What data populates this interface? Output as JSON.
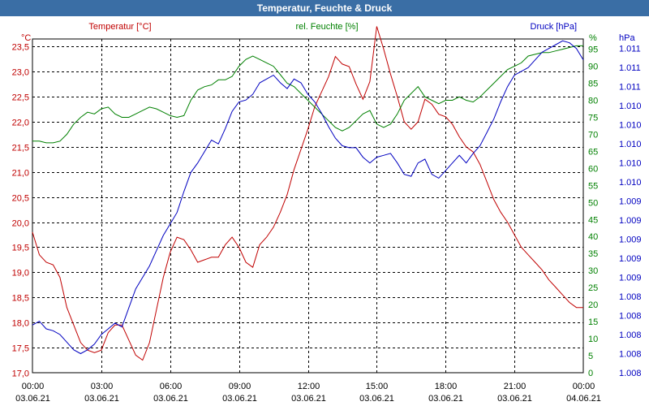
{
  "title": "Temperatur, Feuchte & Druck",
  "chart_data": {
    "type": "line",
    "title": "Temperatur, Feuchte & Druck",
    "x_ticks": [
      {
        "time": "00:00",
        "date": "03.06.21"
      },
      {
        "time": "03:00",
        "date": "03.06.21"
      },
      {
        "time": "06:00",
        "date": "03.06.21"
      },
      {
        "time": "09:00",
        "date": "03.06.21"
      },
      {
        "time": "12:00",
        "date": "03.06.21"
      },
      {
        "time": "15:00",
        "date": "03.06.21"
      },
      {
        "time": "18:00",
        "date": "03.06.21"
      },
      {
        "time": "21:00",
        "date": "03.06.21"
      },
      {
        "time": "00:00",
        "date": "04.06.21"
      }
    ],
    "xlim": [
      0,
      24
    ],
    "axes": {
      "temperature": {
        "label": "Temperatur [°C]",
        "unit": "°C",
        "color": "#c00000",
        "ylim": [
          17.0,
          23.65
        ],
        "ticks": [
          "17,0",
          "17,5",
          "18,0",
          "18,5",
          "19,0",
          "19,5",
          "20,0",
          "20,5",
          "21,0",
          "21,5",
          "22,0",
          "22,5",
          "23,0",
          "23,5"
        ]
      },
      "humidity": {
        "label": "rel. Feuchte [%]",
        "unit": "%",
        "color": "#008000",
        "ylim": [
          0,
          98
        ],
        "ticks": [
          "0",
          "5",
          "10",
          "15",
          "20",
          "25",
          "30",
          "35",
          "40",
          "45",
          "50",
          "55",
          "60",
          "65",
          "70",
          "75",
          "80",
          "85",
          "90",
          "95"
        ]
      },
      "pressure": {
        "label": "Druck [hPa]",
        "unit": "hPa",
        "color": "#0000c0",
        "ylim": [
          0,
          17.5
        ],
        "ticks": [
          "1.008",
          "1.008",
          "1.008",
          "1.008",
          "1.008",
          "1.009",
          "1.009",
          "1.009",
          "1.009",
          "1.009",
          "1.010",
          "1.010",
          "1.010",
          "1.010",
          "1.010",
          "1.011",
          "1.011",
          "1.011"
        ]
      }
    },
    "series": [
      {
        "name": "Temperatur",
        "axis": "temperature",
        "color": "#c00000",
        "x": [
          0,
          0.3,
          0.6,
          0.9,
          1.2,
          1.5,
          1.8,
          2.1,
          2.4,
          2.7,
          3.0,
          3.3,
          3.6,
          3.9,
          4.2,
          4.5,
          4.8,
          5.1,
          5.4,
          5.7,
          6.0,
          6.3,
          6.6,
          6.9,
          7.2,
          7.5,
          7.8,
          8.1,
          8.4,
          8.7,
          9.0,
          9.3,
          9.6,
          9.9,
          10.2,
          10.5,
          10.8,
          11.1,
          11.4,
          11.7,
          12.0,
          12.3,
          12.6,
          12.9,
          13.2,
          13.5,
          13.8,
          14.1,
          14.4,
          14.7,
          15.0,
          15.3,
          15.6,
          15.9,
          16.2,
          16.5,
          16.8,
          17.1,
          17.4,
          17.7,
          18.0,
          18.3,
          18.6,
          18.9,
          19.2,
          19.5,
          19.8,
          20.1,
          20.4,
          20.7,
          21.0,
          21.3,
          21.6,
          21.9,
          22.2,
          22.5,
          22.8,
          23.1,
          23.4,
          23.7,
          24.0
        ],
        "values": [
          19.8,
          19.35,
          19.2,
          19.15,
          18.9,
          18.3,
          17.95,
          17.6,
          17.45,
          17.4,
          17.45,
          17.8,
          17.95,
          17.95,
          17.65,
          17.35,
          17.25,
          17.6,
          18.25,
          18.9,
          19.4,
          19.7,
          19.65,
          19.45,
          19.2,
          19.25,
          19.3,
          19.3,
          19.55,
          19.7,
          19.5,
          19.2,
          19.1,
          19.55,
          19.7,
          19.9,
          20.2,
          20.55,
          21.05,
          21.45,
          21.85,
          22.3,
          22.6,
          22.9,
          23.3,
          23.15,
          23.1,
          22.75,
          22.45,
          22.8,
          23.9,
          23.45,
          22.95,
          22.5,
          22.0,
          21.85,
          22.0,
          22.45,
          22.35,
          22.15,
          22.1,
          21.95,
          21.7,
          21.5,
          21.4,
          21.15,
          20.8,
          20.45,
          20.2,
          20.0,
          19.75,
          19.5,
          19.35,
          19.2,
          19.05,
          18.85,
          18.7,
          18.55,
          18.4,
          18.3,
          18.3
        ]
      },
      {
        "name": "rel. Feuchte",
        "axis": "humidity",
        "color": "#008000",
        "x": [
          0,
          0.3,
          0.6,
          0.9,
          1.2,
          1.5,
          1.8,
          2.1,
          2.4,
          2.7,
          3.0,
          3.3,
          3.6,
          3.9,
          4.2,
          4.5,
          4.8,
          5.1,
          5.4,
          5.7,
          6.0,
          6.3,
          6.6,
          6.9,
          7.2,
          7.5,
          7.8,
          8.1,
          8.4,
          8.7,
          9.0,
          9.3,
          9.6,
          9.9,
          10.2,
          10.5,
          10.8,
          11.1,
          11.4,
          11.7,
          12.0,
          12.3,
          12.6,
          12.9,
          13.2,
          13.5,
          13.8,
          14.1,
          14.4,
          14.7,
          15.0,
          15.3,
          15.6,
          15.9,
          16.2,
          16.5,
          16.8,
          17.1,
          17.4,
          17.7,
          18.0,
          18.3,
          18.6,
          18.9,
          19.2,
          19.5,
          19.8,
          20.1,
          20.4,
          20.7,
          21.0,
          21.3,
          21.6,
          21.9,
          22.2,
          22.5,
          22.8,
          23.1,
          23.4,
          23.7,
          24.0
        ],
        "values": [
          68,
          68,
          67.5,
          67.5,
          68,
          70,
          73,
          75,
          76.5,
          76,
          77.5,
          78,
          76,
          75,
          75,
          76,
          77,
          78,
          77.5,
          76.5,
          75.5,
          75,
          75.5,
          80,
          83,
          84,
          84.5,
          86,
          86,
          87,
          90,
          92,
          93,
          92,
          91,
          90,
          87.5,
          85,
          84,
          82,
          80,
          78,
          76,
          74,
          72,
          71,
          72,
          74,
          76,
          77,
          73,
          72,
          73,
          76,
          80,
          82,
          84,
          81,
          80,
          79,
          80,
          80,
          81,
          80,
          79.5,
          81,
          83,
          85,
          87,
          89,
          90,
          91,
          93,
          93.5,
          94,
          94,
          94.5,
          95,
          95.5,
          96,
          96
        ]
      },
      {
        "name": "Druck",
        "axis": "pressure",
        "color": "#0000c0",
        "x": [
          0,
          0.3,
          0.6,
          0.9,
          1.2,
          1.5,
          1.8,
          2.1,
          2.4,
          2.7,
          3.0,
          3.3,
          3.6,
          3.9,
          4.2,
          4.5,
          4.8,
          5.1,
          5.4,
          5.7,
          6.0,
          6.3,
          6.6,
          6.9,
          7.2,
          7.5,
          7.8,
          8.1,
          8.4,
          8.7,
          9.0,
          9.3,
          9.6,
          9.9,
          10.2,
          10.5,
          10.8,
          11.1,
          11.4,
          11.7,
          12.0,
          12.3,
          12.6,
          12.9,
          13.2,
          13.5,
          13.8,
          14.1,
          14.4,
          14.7,
          15.0,
          15.3,
          15.6,
          15.9,
          16.2,
          16.5,
          16.8,
          17.1,
          17.4,
          17.7,
          18.0,
          18.3,
          18.6,
          18.9,
          19.2,
          19.5,
          19.8,
          20.1,
          20.4,
          20.7,
          21.0,
          21.3,
          21.6,
          21.9,
          22.2,
          22.5,
          22.8,
          23.1,
          23.4,
          23.7,
          24.0
        ],
        "values": [
          2.5,
          2.7,
          2.3,
          2.2,
          2.0,
          1.6,
          1.2,
          1.0,
          1.2,
          1.5,
          2.0,
          2.3,
          2.6,
          2.4,
          3.4,
          4.4,
          5.0,
          5.6,
          6.4,
          7.2,
          7.8,
          8.4,
          9.5,
          10.5,
          11.0,
          11.6,
          12.2,
          12.0,
          12.8,
          13.7,
          14.2,
          14.3,
          14.6,
          15.2,
          15.4,
          15.6,
          15.2,
          14.9,
          15.4,
          15.2,
          14.6,
          14.2,
          13.6,
          12.9,
          12.3,
          11.9,
          11.8,
          11.8,
          11.3,
          11.0,
          11.3,
          11.4,
          11.5,
          11.0,
          10.4,
          10.3,
          11.0,
          11.2,
          10.4,
          10.2,
          10.6,
          11.0,
          11.4,
          11.0,
          11.5,
          11.9,
          12.6,
          13.3,
          14.2,
          15.0,
          15.6,
          15.8,
          16.0,
          16.4,
          16.8,
          17.0,
          17.2,
          17.4,
          17.3,
          17.0,
          16.4
        ]
      }
    ]
  }
}
